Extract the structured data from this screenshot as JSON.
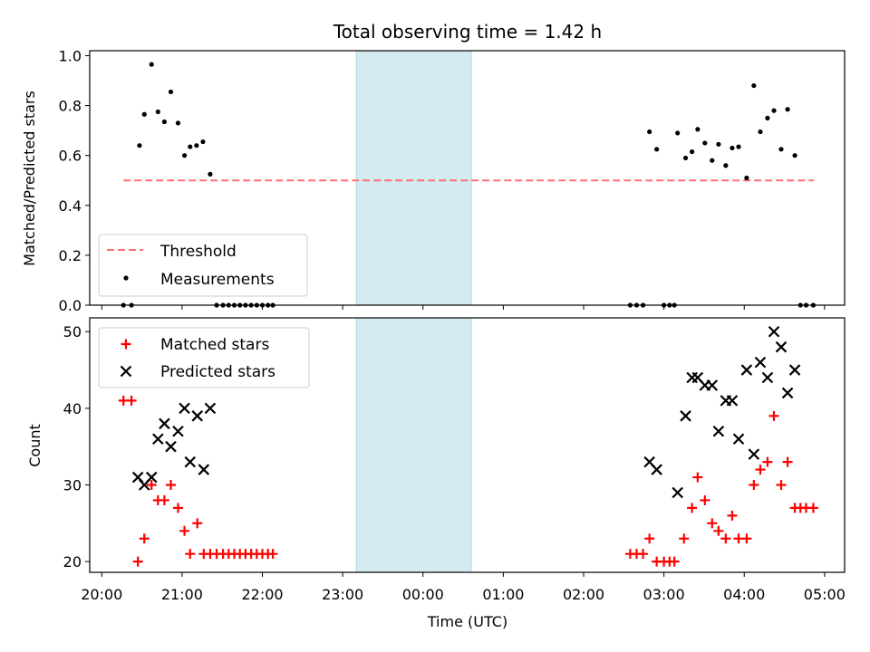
{
  "chart_data": {
    "title": "Total observing time = 1.42 h",
    "shaded_interval": [
      3.17,
      4.6
    ],
    "shade_color": "#d4ebf1",
    "x": {
      "label": "Time (UTC)",
      "range": [
        -0.15,
        9.25
      ],
      "ticks": [
        0,
        1,
        2,
        3,
        4,
        5,
        6,
        7,
        8,
        9
      ],
      "tick_labels": [
        "20:00",
        "21:00",
        "22:00",
        "23:00",
        "00:00",
        "01:00",
        "02:00",
        "03:00",
        "04:00",
        "05:00"
      ]
    },
    "panels": [
      {
        "type": "scatter",
        "ylabel": "Matched/Predicted stars",
        "ylim": [
          0,
          1.02
        ],
        "yticks": [
          0.0,
          0.2,
          0.4,
          0.6,
          0.8,
          1.0
        ],
        "ytick_labels": [
          "0.0",
          "0.2",
          "0.4",
          "0.6",
          "0.8",
          "1.0"
        ],
        "legend": {
          "position": "lower-left",
          "entries": [
            "Threshold",
            "Measurements"
          ]
        },
        "threshold": {
          "name": "Threshold",
          "x": [
            0.27,
            8.87
          ],
          "y": 0.5,
          "color": "#ff7070"
        },
        "measurements": {
          "name": "Measurements",
          "color": "#000000",
          "points": [
            [
              0.27,
              0.0
            ],
            [
              0.37,
              0.0
            ],
            [
              0.47,
              0.64
            ],
            [
              0.53,
              0.765
            ],
            [
              0.62,
              0.965
            ],
            [
              0.7,
              0.775
            ],
            [
              0.78,
              0.735
            ],
            [
              0.86,
              0.855
            ],
            [
              0.95,
              0.73
            ],
            [
              1.03,
              0.6
            ],
            [
              1.1,
              0.635
            ],
            [
              1.18,
              0.64
            ],
            [
              1.26,
              0.655
            ],
            [
              1.35,
              0.525
            ],
            [
              1.43,
              0.0
            ],
            [
              1.51,
              0.0
            ],
            [
              1.58,
              0.0
            ],
            [
              1.65,
              0.0
            ],
            [
              1.72,
              0.0
            ],
            [
              1.79,
              0.0
            ],
            [
              1.86,
              0.0
            ],
            [
              1.93,
              0.0
            ],
            [
              2.0,
              0.0
            ],
            [
              2.07,
              0.0
            ],
            [
              2.13,
              0.0
            ],
            [
              6.58,
              0.0
            ],
            [
              6.66,
              0.0
            ],
            [
              6.74,
              0.0
            ],
            [
              6.82,
              0.695
            ],
            [
              6.91,
              0.625
            ],
            [
              7.0,
              0.0
            ],
            [
              7.07,
              0.0
            ],
            [
              7.13,
              0.0
            ],
            [
              7.17,
              0.69
            ],
            [
              7.27,
              0.59
            ],
            [
              7.35,
              0.615
            ],
            [
              7.42,
              0.705
            ],
            [
              7.51,
              0.65
            ],
            [
              7.6,
              0.58
            ],
            [
              7.68,
              0.645
            ],
            [
              7.77,
              0.56
            ],
            [
              7.85,
              0.63
            ],
            [
              7.93,
              0.635
            ],
            [
              8.03,
              0.51
            ],
            [
              8.12,
              0.88
            ],
            [
              8.2,
              0.695
            ],
            [
              8.29,
              0.75
            ],
            [
              8.37,
              0.78
            ],
            [
              8.46,
              0.625
            ],
            [
              8.54,
              0.785
            ],
            [
              8.63,
              0.6
            ],
            [
              8.7,
              0.0
            ],
            [
              8.77,
              0.0
            ],
            [
              8.86,
              0.0
            ]
          ]
        }
      },
      {
        "type": "scatter",
        "ylabel": "Count",
        "ylim": [
          18.6,
          51.8
        ],
        "yticks": [
          20,
          30,
          40,
          50
        ],
        "ytick_labels": [
          "20",
          "30",
          "40",
          "50"
        ],
        "legend": {
          "position": "top-left",
          "entries": [
            "Matched stars",
            "Predicted stars"
          ]
        },
        "matched": {
          "name": "Matched stars",
          "color": "#ff0000",
          "points": [
            [
              0.27,
              41
            ],
            [
              0.37,
              41
            ],
            [
              0.45,
              20
            ],
            [
              0.53,
              23
            ],
            [
              0.62,
              30
            ],
            [
              0.7,
              28
            ],
            [
              0.78,
              28
            ],
            [
              0.86,
              30
            ],
            [
              0.95,
              27
            ],
            [
              1.03,
              24
            ],
            [
              1.1,
              21
            ],
            [
              1.19,
              25
            ],
            [
              1.27,
              21
            ],
            [
              1.35,
              21
            ],
            [
              1.43,
              21
            ],
            [
              1.51,
              21
            ],
            [
              1.58,
              21
            ],
            [
              1.65,
              21
            ],
            [
              1.72,
              21
            ],
            [
              1.79,
              21
            ],
            [
              1.86,
              21
            ],
            [
              1.93,
              21
            ],
            [
              2.0,
              21
            ],
            [
              2.07,
              21
            ],
            [
              2.13,
              21
            ],
            [
              6.58,
              21
            ],
            [
              6.66,
              21
            ],
            [
              6.74,
              21
            ],
            [
              6.82,
              23
            ],
            [
              6.91,
              20
            ],
            [
              7.0,
              20
            ],
            [
              7.07,
              20
            ],
            [
              7.13,
              20
            ],
            [
              7.25,
              23
            ],
            [
              7.35,
              27
            ],
            [
              7.42,
              31
            ],
            [
              7.51,
              28
            ],
            [
              7.6,
              25
            ],
            [
              7.68,
              24
            ],
            [
              7.77,
              23
            ],
            [
              7.85,
              26
            ],
            [
              7.93,
              23
            ],
            [
              8.03,
              23
            ],
            [
              8.12,
              30
            ],
            [
              8.2,
              32
            ],
            [
              8.29,
              33
            ],
            [
              8.37,
              39
            ],
            [
              8.46,
              30
            ],
            [
              8.54,
              33
            ],
            [
              8.63,
              27
            ],
            [
              8.7,
              27
            ],
            [
              8.77,
              27
            ],
            [
              8.86,
              27
            ]
          ]
        },
        "predicted": {
          "name": "Predicted stars",
          "color": "#000000",
          "points": [
            [
              0.45,
              31
            ],
            [
              0.53,
              30
            ],
            [
              0.62,
              31
            ],
            [
              0.7,
              36
            ],
            [
              0.78,
              38
            ],
            [
              0.86,
              35
            ],
            [
              0.95,
              37
            ],
            [
              1.03,
              40
            ],
            [
              1.1,
              33
            ],
            [
              1.19,
              39
            ],
            [
              1.27,
              32
            ],
            [
              1.35,
              40
            ],
            [
              6.82,
              33
            ],
            [
              6.91,
              32
            ],
            [
              7.17,
              29
            ],
            [
              7.27,
              39
            ],
            [
              7.35,
              44
            ],
            [
              7.42,
              44
            ],
            [
              7.51,
              43
            ],
            [
              7.6,
              43
            ],
            [
              7.68,
              37
            ],
            [
              7.77,
              41
            ],
            [
              7.85,
              41
            ],
            [
              7.93,
              36
            ],
            [
              8.03,
              45
            ],
            [
              8.12,
              34
            ],
            [
              8.2,
              46
            ],
            [
              8.29,
              44
            ],
            [
              8.37,
              50
            ],
            [
              8.46,
              48
            ],
            [
              8.54,
              42
            ],
            [
              8.63,
              45
            ]
          ]
        }
      }
    ]
  }
}
